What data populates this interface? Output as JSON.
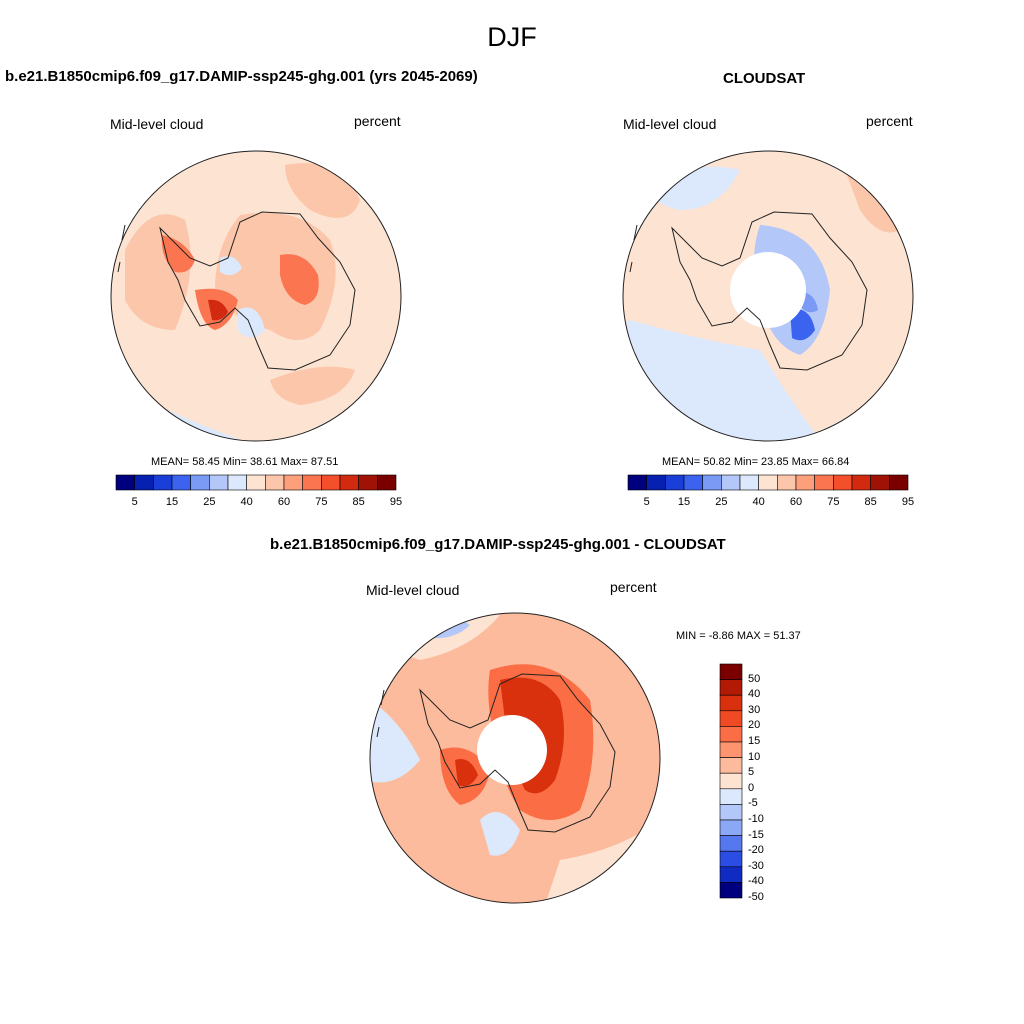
{
  "title": "DJF",
  "panels": [
    {
      "title": "b.e21.B1850cmip6.f09_g17.DAMIP-ssp245-ghg.001 (yrs 2045-2069)",
      "left_label": "Mid-level cloud",
      "right_label": "percent",
      "stats": "MEAN=  58.45  Min=  38.61  Max=  87.51",
      "colorbar_ticks": [
        "5",
        "15",
        "25",
        "40",
        "60",
        "75",
        "85",
        "95"
      ]
    },
    {
      "title": "CLOUDSAT",
      "left_label": "Mid-level cloud",
      "right_label": "percent",
      "stats": "MEAN=  50.82  Min=  23.85  Max=  66.84",
      "colorbar_ticks": [
        "5",
        "15",
        "25",
        "40",
        "60",
        "75",
        "85",
        "95"
      ]
    },
    {
      "title": "b.e21.B1850cmip6.f09_g17.DAMIP-ssp245-ghg.001 - CLOUDSAT",
      "left_label": "Mid-level cloud",
      "right_label": "percent",
      "stats": "MIN =  -8.86 MAX =  51.37",
      "colorbar_ticks": [
        "50",
        "40",
        "30",
        "20",
        "15",
        "10",
        "5",
        "0",
        "-5",
        "-10",
        "-15",
        "-20",
        "-30",
        "-40",
        "-50"
      ]
    }
  ],
  "colors": {
    "abs_scale": [
      "#00007f",
      "#0620b0",
      "#1a3fd8",
      "#3b63f0",
      "#7a9af5",
      "#b3c8f8",
      "#dce8fc",
      "#fde3d2",
      "#fcc6aa",
      "#fc9f7a",
      "#fb7650",
      "#f24f2a",
      "#d22a10",
      "#a01205",
      "#7a0000"
    ],
    "diff_scale": [
      "#7a0000",
      "#b31a05",
      "#d9300e",
      "#f04a24",
      "#fb6d44",
      "#fc9470",
      "#fdbb9d",
      "#fde3d2",
      "#dce8fc",
      "#b3c8f8",
      "#8aa8f5",
      "#5578ee",
      "#2c4de4",
      "#0f2bc2",
      "#00007f"
    ]
  }
}
